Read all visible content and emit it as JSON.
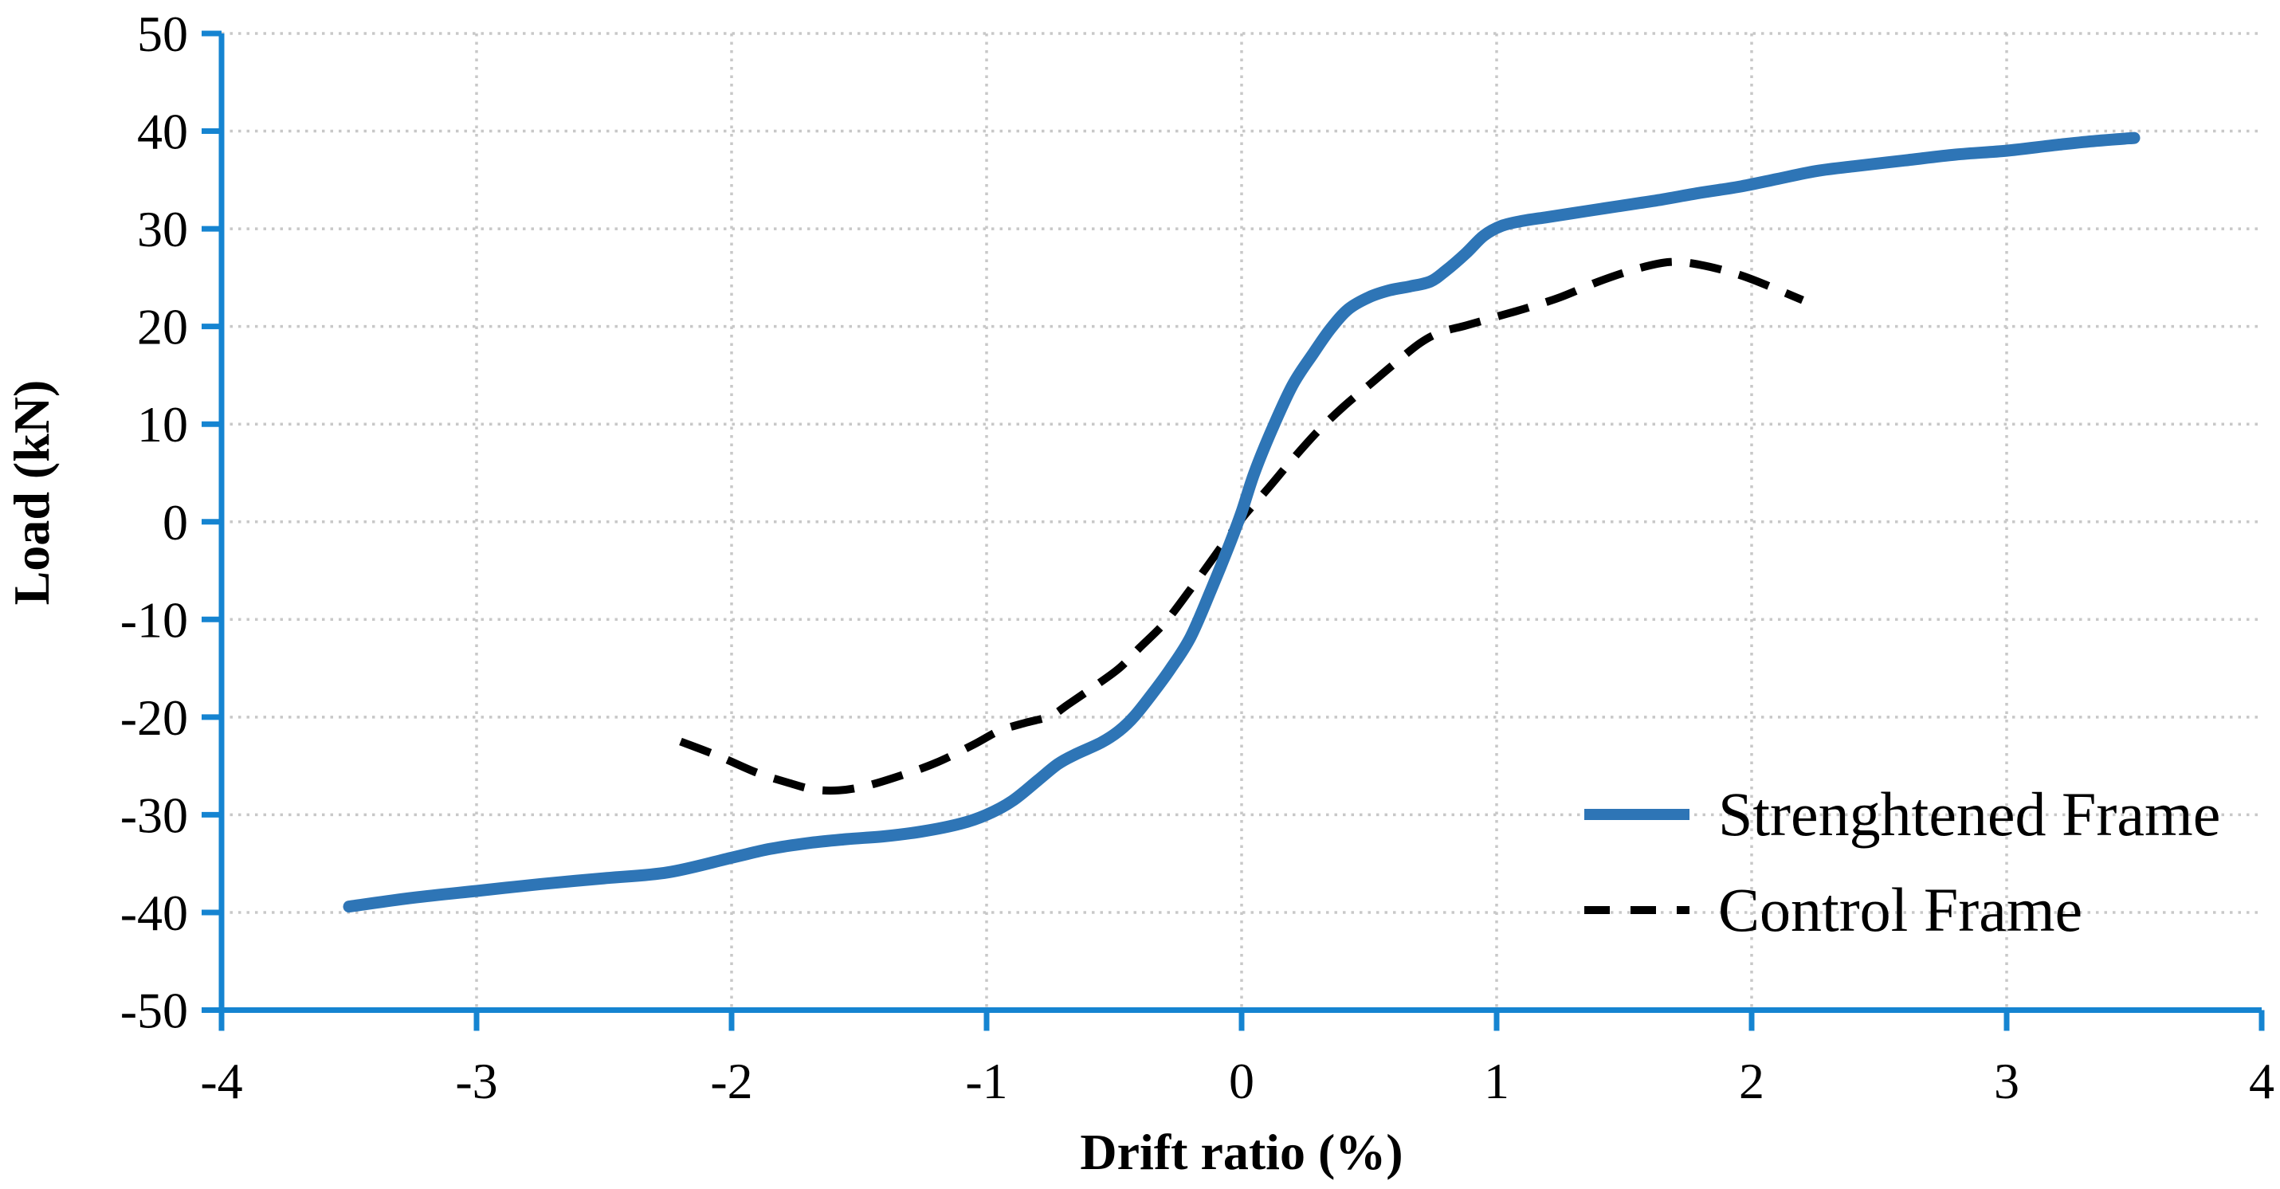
{
  "chart_data": {
    "type": "line",
    "title": "",
    "xlabel": "Drift ratio (%)",
    "ylabel": "Load (kN)",
    "xlim": [
      -4,
      4
    ],
    "ylim": [
      -50,
      50
    ],
    "x_ticks": [
      "-4",
      "-3",
      "-2",
      "-1",
      "0",
      "1",
      "2",
      "3",
      "4"
    ],
    "x_tick_values": [
      -4,
      -3,
      -2,
      -1,
      0,
      1,
      2,
      3,
      4
    ],
    "y_ticks": [
      "50",
      "40",
      "30",
      "20",
      "10",
      "0",
      "-10",
      "-20",
      "-30",
      "-40",
      "-50"
    ],
    "y_tick_values": [
      50,
      40,
      30,
      20,
      10,
      0,
      -10,
      -20,
      -30,
      -40,
      -50
    ],
    "grid": {
      "x_lines": [
        -3,
        -2,
        -1,
        0,
        1,
        2,
        3
      ],
      "y_lines": [
        50,
        40,
        30,
        20,
        10,
        0,
        -10,
        -20,
        -30,
        -40
      ],
      "style": "dotted",
      "color": "#c8c8c8"
    },
    "axis_color": "#1584D1",
    "text_color": "#000000",
    "legend_position": "inside-bottom-right",
    "series": [
      {
        "name": "Control Frame",
        "color": "#000000",
        "style": "dashed",
        "points": [
          [
            -2.2,
            -22.5
          ],
          [
            -2.05,
            -24.0
          ],
          [
            -1.9,
            -25.7
          ],
          [
            -1.78,
            -26.7
          ],
          [
            -1.68,
            -27.4
          ],
          [
            -1.58,
            -27.5
          ],
          [
            -1.48,
            -27.1
          ],
          [
            -1.35,
            -26.1
          ],
          [
            -1.2,
            -24.7
          ],
          [
            -1.05,
            -22.8
          ],
          [
            -0.95,
            -21.4
          ],
          [
            -0.85,
            -20.6
          ],
          [
            -0.75,
            -19.9
          ],
          [
            -0.68,
            -18.7
          ],
          [
            -0.58,
            -16.9
          ],
          [
            -0.48,
            -15.0
          ],
          [
            -0.4,
            -12.9
          ],
          [
            -0.3,
            -10.3
          ],
          [
            -0.2,
            -6.9
          ],
          [
            -0.1,
            -3.3
          ],
          [
            0.0,
            0.3
          ],
          [
            0.1,
            3.3
          ],
          [
            0.2,
            6.4
          ],
          [
            0.3,
            9.3
          ],
          [
            0.4,
            11.8
          ],
          [
            0.5,
            14.0
          ],
          [
            0.6,
            16.2
          ],
          [
            0.7,
            18.3
          ],
          [
            0.78,
            19.4
          ],
          [
            0.88,
            20.1
          ],
          [
            1.0,
            21.0
          ],
          [
            1.12,
            21.9
          ],
          [
            1.25,
            23.0
          ],
          [
            1.4,
            24.6
          ],
          [
            1.55,
            25.9
          ],
          [
            1.68,
            26.6
          ],
          [
            1.8,
            26.3
          ],
          [
            1.95,
            25.3
          ],
          [
            2.08,
            24.0
          ],
          [
            2.2,
            22.7
          ]
        ]
      },
      {
        "name": "Strenghtened Frame",
        "color": "#2E75B6",
        "style": "solid",
        "points": [
          [
            -3.5,
            -39.4
          ],
          [
            -3.25,
            -38.5
          ],
          [
            -3.0,
            -37.8
          ],
          [
            -2.75,
            -37.1
          ],
          [
            -2.5,
            -36.5
          ],
          [
            -2.25,
            -35.9
          ],
          [
            -2.0,
            -34.4
          ],
          [
            -1.85,
            -33.5
          ],
          [
            -1.7,
            -32.9
          ],
          [
            -1.55,
            -32.5
          ],
          [
            -1.4,
            -32.2
          ],
          [
            -1.25,
            -31.7
          ],
          [
            -1.1,
            -30.9
          ],
          [
            -1.0,
            -30.0
          ],
          [
            -0.9,
            -28.6
          ],
          [
            -0.8,
            -26.5
          ],
          [
            -0.72,
            -24.8
          ],
          [
            -0.65,
            -23.8
          ],
          [
            -0.55,
            -22.6
          ],
          [
            -0.48,
            -21.4
          ],
          [
            -0.42,
            -19.9
          ],
          [
            -0.35,
            -17.6
          ],
          [
            -0.28,
            -15.1
          ],
          [
            -0.2,
            -11.8
          ],
          [
            -0.12,
            -7.0
          ],
          [
            -0.05,
            -2.5
          ],
          [
            0.0,
            1.0
          ],
          [
            0.05,
            5.0
          ],
          [
            0.12,
            9.5
          ],
          [
            0.2,
            14.0
          ],
          [
            0.28,
            17.2
          ],
          [
            0.35,
            19.8
          ],
          [
            0.42,
            21.8
          ],
          [
            0.5,
            23.0
          ],
          [
            0.58,
            23.7
          ],
          [
            0.66,
            24.1
          ],
          [
            0.74,
            24.6
          ],
          [
            0.8,
            25.7
          ],
          [
            0.88,
            27.5
          ],
          [
            0.95,
            29.3
          ],
          [
            1.02,
            30.3
          ],
          [
            1.1,
            30.8
          ],
          [
            1.2,
            31.2
          ],
          [
            1.35,
            31.8
          ],
          [
            1.5,
            32.4
          ],
          [
            1.65,
            33.0
          ],
          [
            1.8,
            33.7
          ],
          [
            1.95,
            34.3
          ],
          [
            2.1,
            35.1
          ],
          [
            2.25,
            35.9
          ],
          [
            2.4,
            36.4
          ],
          [
            2.6,
            37.0
          ],
          [
            2.8,
            37.6
          ],
          [
            3.0,
            38.0
          ],
          [
            3.2,
            38.6
          ],
          [
            3.35,
            39.0
          ],
          [
            3.5,
            39.3
          ]
        ]
      }
    ]
  }
}
